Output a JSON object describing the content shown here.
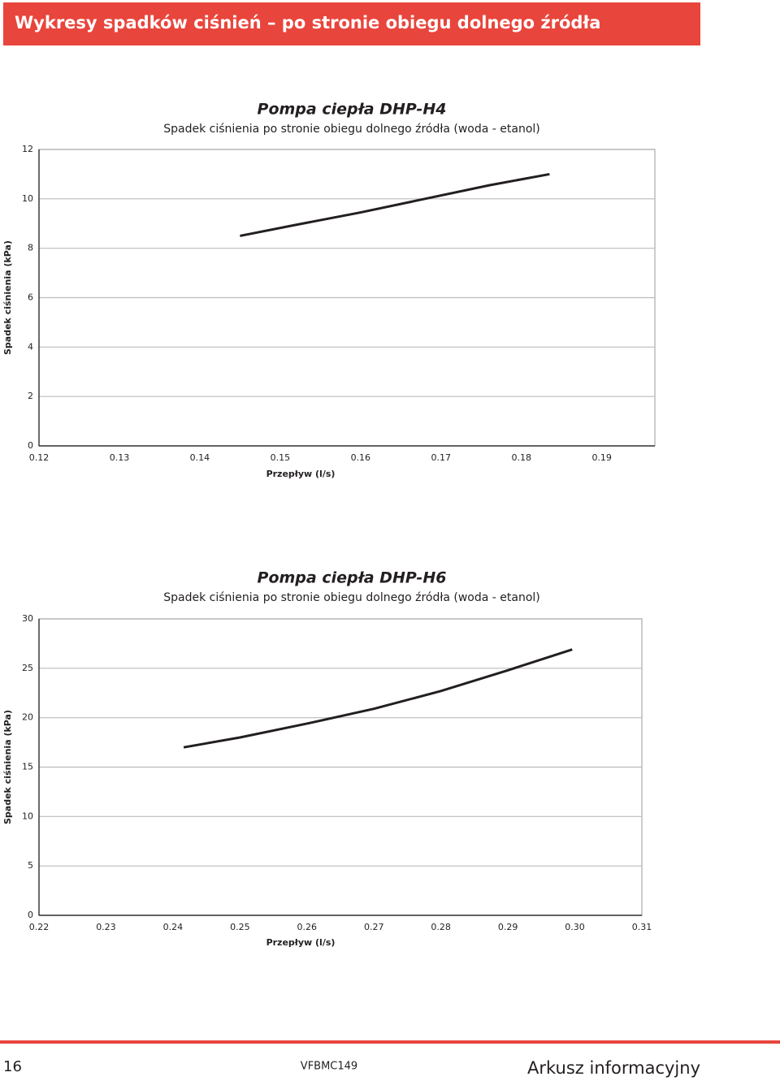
{
  "header": {
    "title": "Wykresy spadków ciśnień – po stronie obiegu dolnego źródła"
  },
  "chart_data": [
    {
      "type": "line",
      "title": "Pompa ciepła DHP-H4",
      "subtitle": "Spadek ciśnienia po stronie obiegu dolnego źródła (woda - etanol)",
      "x_label": "Przepływ (l/s)",
      "y_label": "Spadek ciśnienia (kPa)",
      "x": [
        0.145,
        0.152,
        0.16,
        0.168,
        0.176,
        0.1835
      ],
      "series": [
        {
          "color": "#231f20",
          "values": [
            8.5,
            8.95,
            9.45,
            10.0,
            10.55,
            11.0
          ]
        }
      ],
      "xlim": [
        0.12,
        0.1966
      ],
      "xticks": [
        0.12,
        0.13,
        0.14,
        0.15,
        0.16,
        0.17,
        0.18,
        0.19
      ],
      "ylim": [
        0,
        12
      ],
      "yticks": [
        0,
        2,
        4,
        6,
        8,
        10,
        12
      ],
      "grid": true
    },
    {
      "type": "line",
      "title": "Pompa ciepła DHP-H6",
      "subtitle": "Spadek ciśnienia po stronie obiegu dolnego źródła (woda - etanol)",
      "x_label": "Przepływ (l/s)",
      "y_label": "Spadek ciśnienia (kPa)",
      "x": [
        0.2416,
        0.25,
        0.26,
        0.27,
        0.28,
        0.29,
        0.2996
      ],
      "series": [
        {
          "color": "#231f20",
          "values": [
            17.0,
            18.0,
            19.4,
            20.9,
            22.7,
            24.8,
            26.9
          ]
        }
      ],
      "xlim": [
        0.22,
        0.31
      ],
      "xticks": [
        0.22,
        0.23,
        0.24,
        0.25,
        0.26,
        0.27,
        0.28,
        0.29,
        {
          "value": 0.3,
          "label": "0.30"
        },
        0.31
      ],
      "ylim": [
        0,
        30
      ],
      "yticks": [
        0,
        5,
        10,
        15,
        20,
        25,
        30
      ],
      "grid": true
    }
  ],
  "footer": {
    "page": "16",
    "code": "VFBMC149",
    "title": "Arkusz informacyjny"
  }
}
